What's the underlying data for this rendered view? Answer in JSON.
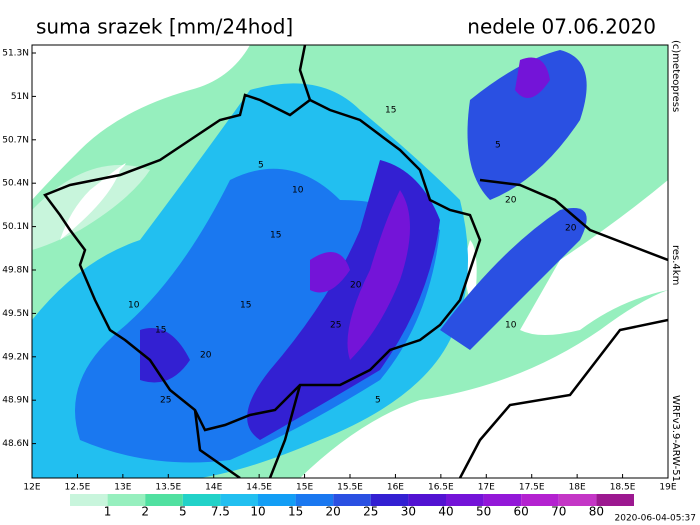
{
  "header": {
    "title": "suma srazek [mm/24hod]",
    "date": "nedele 07.06.2020"
  },
  "axes": {
    "latitudes": [
      "51.3N",
      "51N",
      "50.7N",
      "50.4N",
      "50.1N",
      "49.8N",
      "49.5N",
      "49.2N",
      "48.9N",
      "48.6N"
    ],
    "longitudes": [
      "12E",
      "12.5E",
      "13E",
      "13.5E",
      "14E",
      "14.5E",
      "15E",
      "15.5E",
      "16E",
      "16.5E",
      "17E",
      "17.5E",
      "18E",
      "18.5E",
      "19E"
    ]
  },
  "side_labels": {
    "copyright": "(c)meteopress",
    "resolution": "res.4km",
    "model": "WRFv3.9-ARW-51"
  },
  "legend": {
    "labels": [
      "1",
      "2",
      "5",
      "7.5",
      "10",
      "15",
      "20",
      "25",
      "30",
      "40",
      "50",
      "60",
      "70",
      "80"
    ],
    "colors": [
      "#c8f5dc",
      "#96efbe",
      "#50e0a0",
      "#22d2c8",
      "#22bff0",
      "#139ef5",
      "#1a78f0",
      "#2a50e2",
      "#3320d2",
      "#5212d2",
      "#7414d8",
      "#9318d8",
      "#b422d0",
      "#c436c6",
      "#9c1890"
    ]
  },
  "contour_labels": [
    "5",
    "10",
    "15",
    "20",
    "25",
    "15",
    "20",
    "10",
    "5",
    "15",
    "20",
    "25",
    "10",
    "20",
    "5",
    "15"
  ],
  "footer": {
    "timestamp": "2020-06-04-05:37"
  }
}
